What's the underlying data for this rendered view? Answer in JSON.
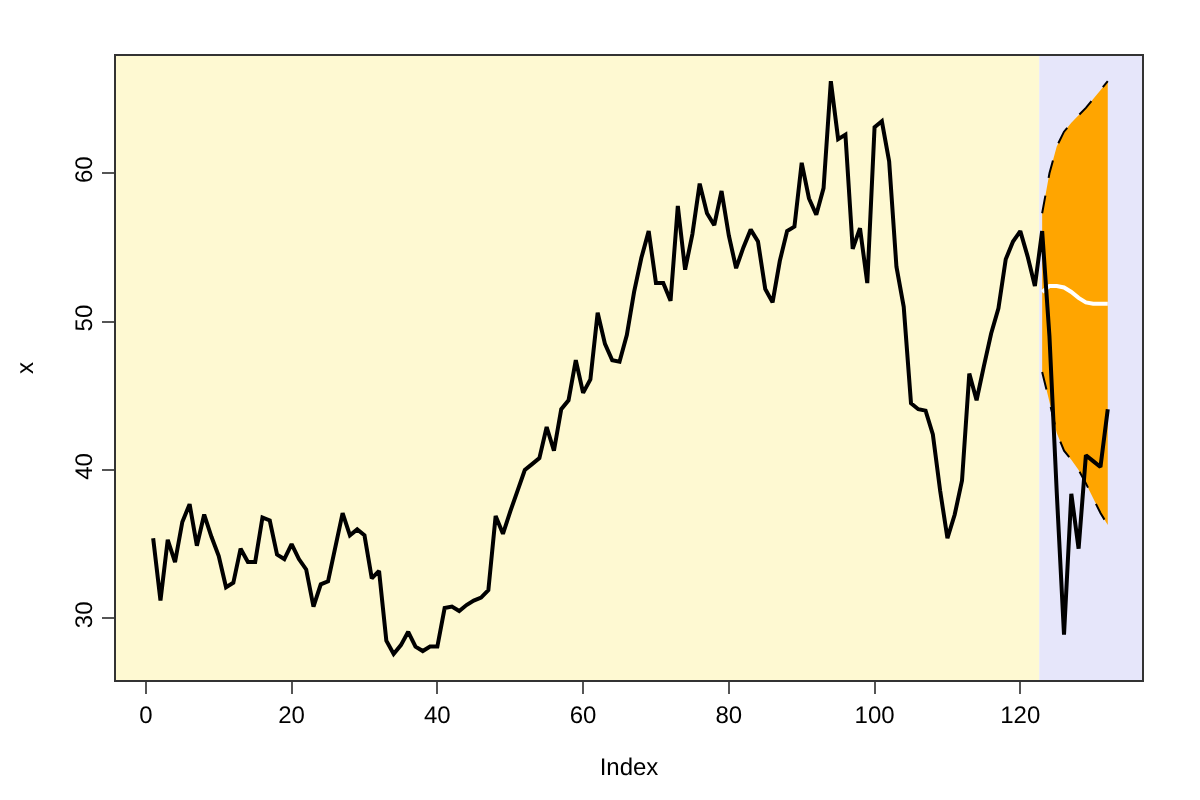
{
  "chart_data": {
    "type": "line",
    "xlabel": "Index",
    "ylabel": "x",
    "xlim": [
      -4.1,
      136.7
    ],
    "ylim": [
      25.85,
      67.9
    ],
    "xticks": [
      0,
      20,
      40,
      60,
      80,
      100,
      120
    ],
    "yticks": [
      30,
      40,
      50,
      60
    ],
    "grid": false,
    "marker": "none",
    "line_style": "solid",
    "bands": [
      {
        "axis": "x",
        "from": -4.1,
        "to": 122.6,
        "color": "#fef9d2"
      },
      {
        "axis": "x",
        "from": 122.6,
        "to": 136.7,
        "color": "#e6e6fa"
      }
    ],
    "series": [
      {
        "color": "#000000",
        "x": [
          1,
          2,
          3,
          4,
          5,
          6,
          7,
          8,
          9,
          10,
          11,
          12,
          13,
          14,
          15,
          16,
          17,
          18,
          19,
          20,
          21,
          22,
          23,
          24,
          25,
          26,
          27,
          28,
          29,
          30,
          31,
          32,
          33,
          34,
          35,
          36,
          37,
          38,
          39,
          40,
          41,
          42,
          43,
          44,
          45,
          46,
          47,
          48,
          49,
          50,
          51,
          52,
          53,
          54,
          55,
          56,
          57,
          58,
          59,
          60,
          61,
          62,
          63,
          64,
          65,
          66,
          67,
          68,
          69,
          70,
          71,
          72,
          73,
          74,
          75,
          76,
          77,
          78,
          79,
          80,
          81,
          82,
          83,
          84,
          85,
          86,
          87,
          88,
          89,
          90,
          91,
          92,
          93,
          94,
          95,
          96,
          97,
          98,
          99,
          100,
          101,
          102,
          103,
          104,
          105,
          106,
          107,
          108,
          109,
          110,
          111,
          112,
          113,
          114,
          115,
          116,
          117,
          118,
          119,
          120,
          121,
          122,
          123,
          124,
          125,
          126,
          127,
          128,
          129,
          130,
          131,
          132
        ],
        "values": [
          35.4,
          31.2,
          35.3,
          33.8,
          36.5,
          37.7,
          34.9,
          37.0,
          35.5,
          34.2,
          32.1,
          32.4,
          34.7,
          33.8,
          33.8,
          36.8,
          36.6,
          34.3,
          34.0,
          35.0,
          34.0,
          33.3,
          30.8,
          32.3,
          32.5,
          34.8,
          37.1,
          35.6,
          36.0,
          35.6,
          32.7,
          33.2,
          28.5,
          27.6,
          28.2,
          29.1,
          28.1,
          27.8,
          28.1,
          28.1,
          30.7,
          30.8,
          30.5,
          30.9,
          31.2,
          31.4,
          31.9,
          36.9,
          35.7,
          37.2,
          38.6,
          40.0,
          40.4,
          40.8,
          42.9,
          41.3,
          44.1,
          44.7,
          47.4,
          45.2,
          46.1,
          50.6,
          48.5,
          47.4,
          47.3,
          49.1,
          52.0,
          54.3,
          56.1,
          52.6,
          52.6,
          51.4,
          57.8,
          53.5,
          55.9,
          59.3,
          57.3,
          56.5,
          58.8,
          55.8,
          53.6,
          55.0,
          56.2,
          55.4,
          52.2,
          51.3,
          54.1,
          56.1,
          56.4,
          60.7,
          58.3,
          57.2,
          59.0,
          66.2,
          62.3,
          62.6,
          54.9,
          56.3,
          52.6,
          63.1,
          63.5,
          60.8,
          53.7,
          51.0,
          44.5,
          44.1,
          44.0,
          42.4,
          38.6,
          35.4,
          37.0,
          39.3,
          46.5,
          44.7,
          47.0,
          49.2,
          50.9,
          54.2,
          55.4,
          56.1,
          54.4,
          52.4,
          56.1,
          49.0,
          38.5,
          28.9,
          38.4,
          34.7,
          41.0,
          40.6,
          40.2,
          44.1
        ]
      },
      {
        "color": "#000000",
        "line_style": "dashed",
        "x": [
          123,
          124,
          125,
          126,
          127,
          128,
          129,
          130,
          131,
          132
        ],
        "values": [
          46.6,
          44.6,
          42.5,
          41.3,
          40.7,
          40.0,
          39.1,
          38.1,
          37.1,
          36.3
        ]
      },
      {
        "color": "#000000",
        "line_style": "dashed",
        "x": [
          123,
          124,
          125,
          126,
          127,
          128,
          129,
          130,
          131,
          132
        ],
        "values": [
          57.3,
          60.0,
          61.8,
          62.8,
          63.4,
          63.9,
          64.4,
          65.0,
          65.6,
          66.2
        ]
      },
      {
        "color": "#ffffff",
        "x": [
          123,
          124,
          125,
          126,
          127,
          128,
          129,
          130,
          131,
          132
        ],
        "values": [
          52.0,
          52.4,
          52.4,
          52.3,
          52.0,
          51.6,
          51.3,
          51.2,
          51.2,
          51.2
        ],
        "lower": [
          46.6,
          44.6,
          42.5,
          41.3,
          40.7,
          40.0,
          39.1,
          38.1,
          37.1,
          36.3
        ],
        "upper": [
          57.3,
          60.0,
          61.8,
          62.8,
          63.4,
          63.9,
          64.4,
          65.0,
          65.6,
          66.2
        ]
      }
    ]
  }
}
